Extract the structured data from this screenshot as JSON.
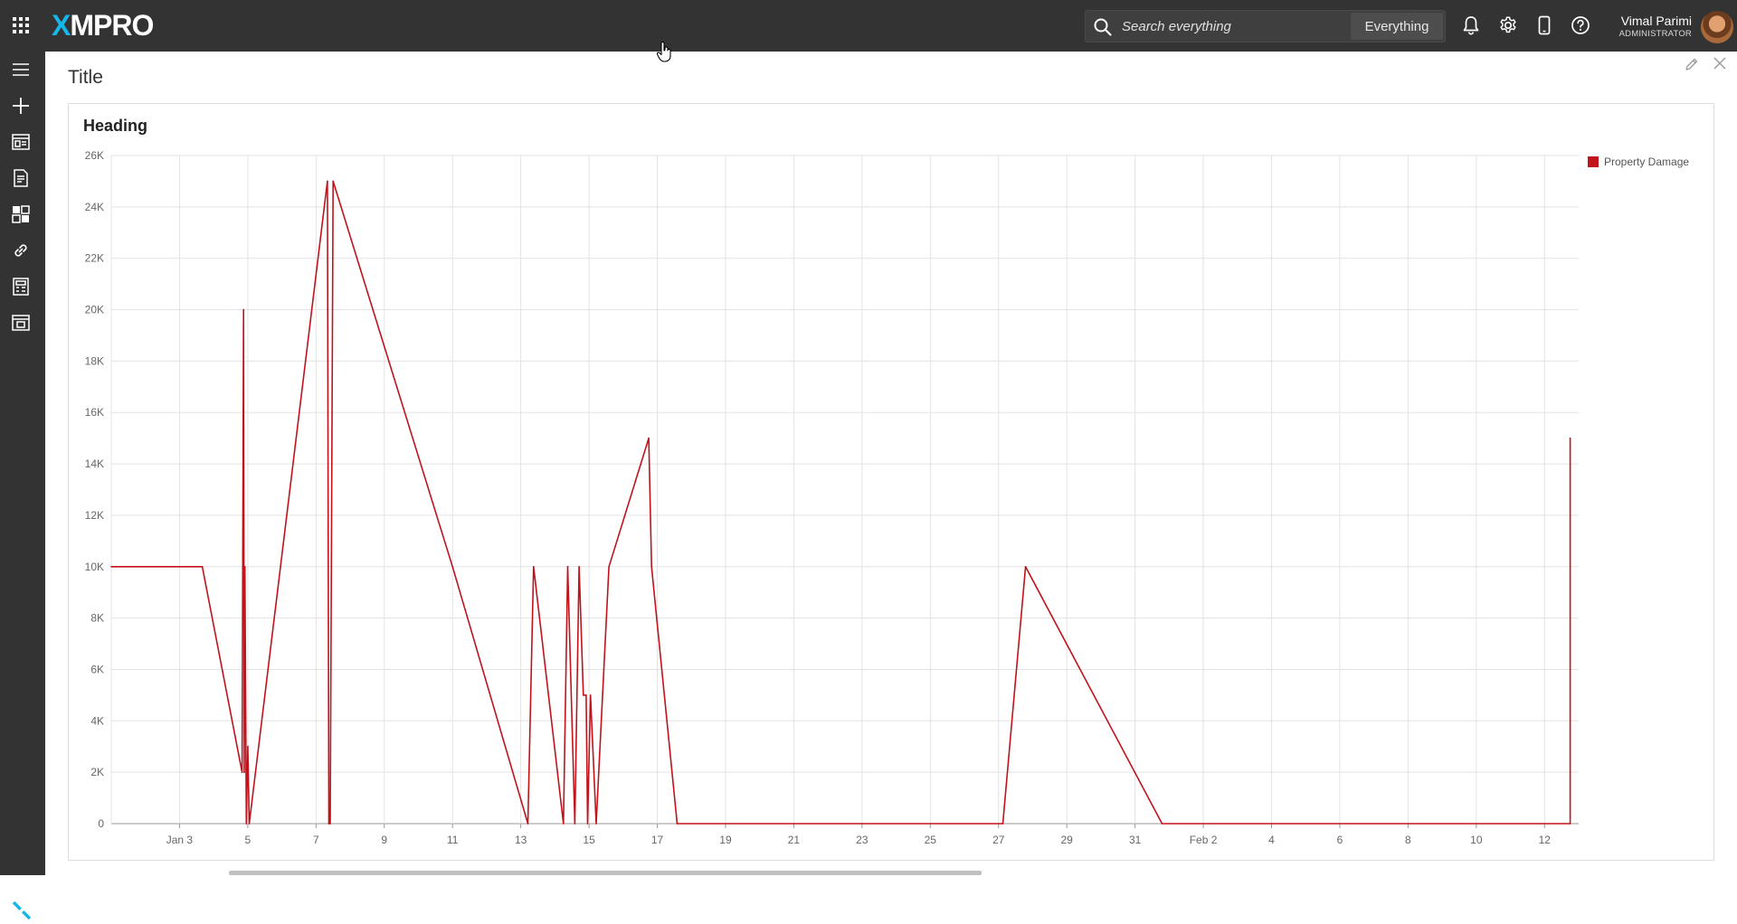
{
  "header": {
    "logo_prefix": "X",
    "logo_rest": "MPRO",
    "search": {
      "placeholder": "Search everything",
      "scope": "Everything"
    },
    "user": {
      "name": "Vimal Parimi",
      "role": "ADMINISTRATOR"
    }
  },
  "sidebar": {
    "items": [
      {
        "icon": "hamburger-menu-icon"
      },
      {
        "icon": "plus-icon"
      },
      {
        "icon": "app-designer-icon"
      },
      {
        "icon": "recommendations-icon"
      },
      {
        "icon": "dashboard-icon"
      },
      {
        "icon": "link-icon"
      },
      {
        "icon": "calculator-icon"
      },
      {
        "icon": "data-stream-icon"
      }
    ]
  },
  "panel": {
    "title": "Title"
  },
  "card": {
    "heading": "Heading"
  },
  "colors": {
    "series": "#c0131c",
    "topbar": "#333333",
    "logo_accent": "#17b6e8"
  },
  "chart_data": {
    "type": "line",
    "title": "",
    "xlabel": "",
    "ylabel": "",
    "grid": true,
    "legend_position": "top-right",
    "ylim": [
      0,
      26000
    ],
    "yticks": [
      0,
      2000,
      4000,
      6000,
      8000,
      10000,
      12000,
      14000,
      16000,
      18000,
      20000,
      22000,
      24000,
      26000
    ],
    "ytick_labels": [
      "0",
      "2K",
      "4K",
      "6K",
      "8K",
      "10K",
      "12K",
      "14K",
      "16K",
      "18K",
      "20K",
      "22K",
      "24K",
      "26K"
    ],
    "xlim": [
      "2024-01-01",
      "2024-02-13"
    ],
    "xticks": [
      "2024-01-03",
      "2024-01-05",
      "2024-01-07",
      "2024-01-09",
      "2024-01-11",
      "2024-01-13",
      "2024-01-15",
      "2024-01-17",
      "2024-01-19",
      "2024-01-21",
      "2024-01-23",
      "2024-01-25",
      "2024-01-27",
      "2024-01-29",
      "2024-01-31",
      "2024-02-02",
      "2024-02-04",
      "2024-02-06",
      "2024-02-08",
      "2024-02-10",
      "2024-02-12"
    ],
    "xtick_labels": [
      "Jan 3",
      "5",
      "7",
      "9",
      "11",
      "13",
      "15",
      "17",
      "19",
      "21",
      "23",
      "25",
      "27",
      "29",
      "31",
      "Feb 2",
      "4",
      "6",
      "8",
      "10",
      "12"
    ],
    "series": [
      {
        "name": "Property Damage",
        "color": "#c0131c",
        "x": [
          "2024-01-01 00:00",
          "2024-01-03 16:00",
          "2024-01-04 20:00",
          "2024-01-04 21:00",
          "2024-01-04 21:30",
          "2024-01-04 22:00",
          "2024-01-04 23:00",
          "2024-01-05 00:00",
          "2024-01-05 01:00",
          "2024-01-07 08:00",
          "2024-01-07 09:00",
          "2024-01-07 10:00",
          "2024-01-07 12:00",
          "2024-01-11 00:00",
          "2024-01-13 05:00",
          "2024-01-13 09:00",
          "2024-01-14 06:00",
          "2024-01-14 09:00",
          "2024-01-14 14:00",
          "2024-01-14 17:00",
          "2024-01-14 20:00",
          "2024-01-14 22:00",
          "2024-01-14 23:00",
          "2024-01-15 01:00",
          "2024-01-15 05:00",
          "2024-01-15 14:00",
          "2024-01-16 18:00",
          "2024-01-16 20:00",
          "2024-01-17 14:00",
          "2024-01-27 03:00",
          "2024-01-27 19:00",
          "2024-01-31 19:00",
          "2024-02-12 18:00",
          "2024-02-12 18:01"
        ],
        "y": [
          10000,
          10000,
          2000,
          20000,
          2000,
          10000,
          0,
          3000,
          0,
          25000,
          0,
          0,
          25000,
          10000,
          0,
          10000,
          0,
          10000,
          0,
          10000,
          5000,
          5000,
          0,
          5000,
          0,
          10000,
          15000,
          10000,
          0,
          0,
          10000,
          0,
          0,
          15000
        ]
      }
    ]
  }
}
